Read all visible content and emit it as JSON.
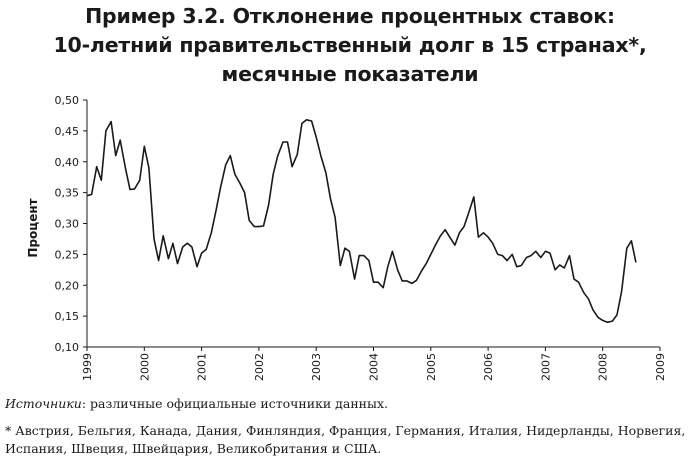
{
  "title_lines": [
    "Пример 3.2. Отклонение процентных ставок:",
    "10-летний правительственный долг в 15 странах*,",
    "месячные показатели"
  ],
  "footer": {
    "sources_label": "Источники",
    "sources_text": ": различные официальные источники данных.",
    "note_line1": "* Австрия, Бельгия, Канада, Дания, Финляндия, Франция, Германия, Италия, Нидерланды, Норвегия,",
    "note_line2": "Испания, Швеция, Швейцария, Великобритания и США."
  },
  "chart_data": {
    "type": "line",
    "title": "Пример 3.2. Отклонение процентных ставок: 10-летний правительственный долг в 15 странах*, месячные показатели",
    "xlabel": "",
    "ylabel": "Процент",
    "xlim": [
      1999,
      2009
    ],
    "ylim": [
      0.1,
      0.5
    ],
    "x_ticks": [
      "1999",
      "2000",
      "2001",
      "2002",
      "2003",
      "2004",
      "2005",
      "2006",
      "2007",
      "2008",
      "2009"
    ],
    "y_ticks": [
      "0,10",
      "0,15",
      "0,20",
      "0,25",
      "0,30",
      "0,35",
      "0,40",
      "0,45",
      "0,50"
    ],
    "grid": false,
    "line_color": "#1a1a1a",
    "series": [
      {
        "x": [
          1999.0,
          1999.08,
          1999.17,
          1999.25,
          1999.33,
          1999.42,
          1999.5,
          1999.58,
          1999.67,
          1999.75,
          1999.83,
          1999.92,
          2000.0,
          2000.08,
          2000.17,
          2000.25,
          2000.33,
          2000.42,
          2000.5,
          2000.58,
          2000.67,
          2000.75,
          2000.83,
          2000.92,
          2001.0,
          2001.08,
          2001.17,
          2001.25,
          2001.33,
          2001.42,
          2001.5,
          2001.58,
          2001.67,
          2001.75,
          2001.83,
          2001.92,
          2002.0,
          2002.08,
          2002.17,
          2002.25,
          2002.33,
          2002.42,
          2002.5,
          2002.58,
          2002.67,
          2002.75,
          2002.83,
          2002.92,
          2003.0,
          2003.08,
          2003.17,
          2003.25,
          2003.33,
          2003.42,
          2003.5,
          2003.58,
          2003.67,
          2003.75,
          2003.83,
          2003.92,
          2004.0,
          2004.08,
          2004.17,
          2004.25,
          2004.33,
          2004.42,
          2004.5,
          2004.58,
          2004.67,
          2004.75,
          2004.83,
          2004.92,
          2005.0,
          2005.08,
          2005.17,
          2005.25,
          2005.33,
          2005.42,
          2005.5,
          2005.58,
          2005.67,
          2005.75,
          2005.83,
          2005.92,
          2006.0,
          2006.08,
          2006.17,
          2006.25,
          2006.33,
          2006.42,
          2006.5,
          2006.58,
          2006.67,
          2006.75,
          2006.83,
          2006.92,
          2007.0,
          2007.08,
          2007.17,
          2007.25,
          2007.33,
          2007.42,
          2007.5,
          2007.58,
          2007.67,
          2007.75,
          2007.83,
          2007.92,
          2008.0,
          2008.08,
          2008.17,
          2008.25,
          2008.33,
          2008.42,
          2008.5,
          2008.58
        ],
        "y": [
          0.345,
          0.347,
          0.392,
          0.37,
          0.45,
          0.465,
          0.41,
          0.435,
          0.39,
          0.355,
          0.356,
          0.37,
          0.425,
          0.39,
          0.275,
          0.24,
          0.28,
          0.243,
          0.268,
          0.235,
          0.262,
          0.268,
          0.262,
          0.23,
          0.252,
          0.258,
          0.285,
          0.32,
          0.358,
          0.395,
          0.41,
          0.38,
          0.365,
          0.35,
          0.305,
          0.295,
          0.295,
          0.296,
          0.33,
          0.38,
          0.41,
          0.432,
          0.432,
          0.392,
          0.412,
          0.462,
          0.468,
          0.466,
          0.44,
          0.41,
          0.382,
          0.34,
          0.31,
          0.232,
          0.26,
          0.255,
          0.21,
          0.248,
          0.248,
          0.24,
          0.205,
          0.205,
          0.196,
          0.23,
          0.255,
          0.225,
          0.207,
          0.207,
          0.203,
          0.208,
          0.222,
          0.235,
          0.25,
          0.265,
          0.28,
          0.29,
          0.278,
          0.265,
          0.285,
          0.295,
          0.32,
          0.343,
          0.278,
          0.285,
          0.278,
          0.268,
          0.25,
          0.248,
          0.24,
          0.25,
          0.23,
          0.232,
          0.245,
          0.248,
          0.255,
          0.245,
          0.255,
          0.252,
          0.225,
          0.233,
          0.228,
          0.248,
          0.21,
          0.205,
          0.188,
          0.178,
          0.16,
          0.148,
          0.143,
          0.14,
          0.142,
          0.152,
          0.19,
          0.26,
          0.272,
          0.237
        ]
      }
    ]
  }
}
